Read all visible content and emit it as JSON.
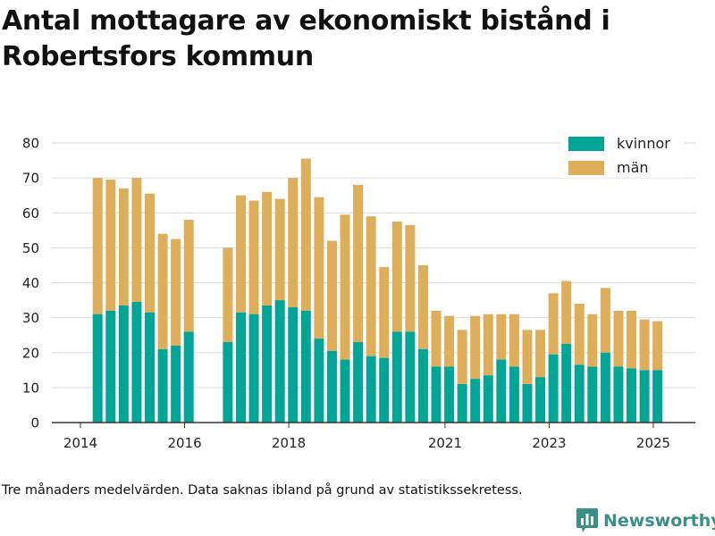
{
  "title": "Antal mottagare av ekonomiskt bistånd i Robertsfors kommun",
  "footnote": "Tre månaders medelvärden. Data saknas ibland på grund av statistikssekretess.",
  "brand": "Newsworthy",
  "colors": {
    "kvinnor": "#00a596",
    "man": "#deae5a",
    "grid": "#dcdcdc",
    "axis": "#333333",
    "brand": "#3a8f86"
  },
  "chart_data": {
    "type": "bar",
    "stacked": true,
    "title": "Antal mottagare av ekonomiskt bistånd i Robertsfors kommun",
    "ylim": [
      0,
      80
    ],
    "yticks": [
      0,
      10,
      20,
      30,
      40,
      50,
      60,
      70,
      80
    ],
    "xlim": [
      2014.0,
      2025.7
    ],
    "xticks": [
      {
        "label": "2014",
        "value": 2014.0
      },
      {
        "label": "2016",
        "value": 2016.0
      },
      {
        "label": "2018",
        "value": 2018.0
      },
      {
        "label": "2021",
        "value": 2021.0
      },
      {
        "label": "2023",
        "value": 2023.0
      },
      {
        "label": "2025",
        "value": 2025.0
      }
    ],
    "legend_position": "top-right",
    "grid": true,
    "x": [
      2014.33,
      2014.58,
      2014.83,
      2015.08,
      2015.33,
      2015.58,
      2015.83,
      2016.08,
      2016.83,
      2017.08,
      2017.33,
      2017.58,
      2017.83,
      2018.08,
      2018.33,
      2018.58,
      2018.83,
      2019.08,
      2019.33,
      2019.58,
      2019.83,
      2020.08,
      2020.33,
      2020.58,
      2020.83,
      2021.08,
      2021.33,
      2021.58,
      2021.83,
      2022.08,
      2022.33,
      2022.58,
      2022.83,
      2023.08,
      2023.33,
      2023.58,
      2023.83,
      2024.08,
      2024.33,
      2024.58,
      2024.83,
      2025.08
    ],
    "series": [
      {
        "name": "kvinnor",
        "values": [
          31,
          32,
          33.5,
          34.5,
          31.5,
          21,
          22,
          26,
          23,
          31.5,
          31,
          33.5,
          35,
          33,
          32,
          24,
          20.5,
          18,
          23,
          19,
          18.5,
          26,
          26,
          21,
          16,
          16,
          11,
          12.5,
          13.5,
          18,
          16,
          11,
          13,
          19.5,
          22.5,
          16.5,
          16,
          20,
          16,
          15.5,
          15,
          15
        ]
      },
      {
        "name": "män",
        "values": [
          39,
          37.5,
          33.5,
          35.5,
          34,
          33,
          30.5,
          32,
          27,
          33.5,
          32.5,
          32.5,
          29,
          37,
          43.5,
          40.5,
          31.5,
          41.5,
          45,
          40,
          26,
          31.5,
          30.5,
          24,
          16,
          14.5,
          15.5,
          18,
          17.5,
          13,
          15,
          15.5,
          13.5,
          17.5,
          18,
          17.5,
          15,
          18.5,
          16,
          16.5,
          14.5,
          14
        ]
      }
    ]
  }
}
